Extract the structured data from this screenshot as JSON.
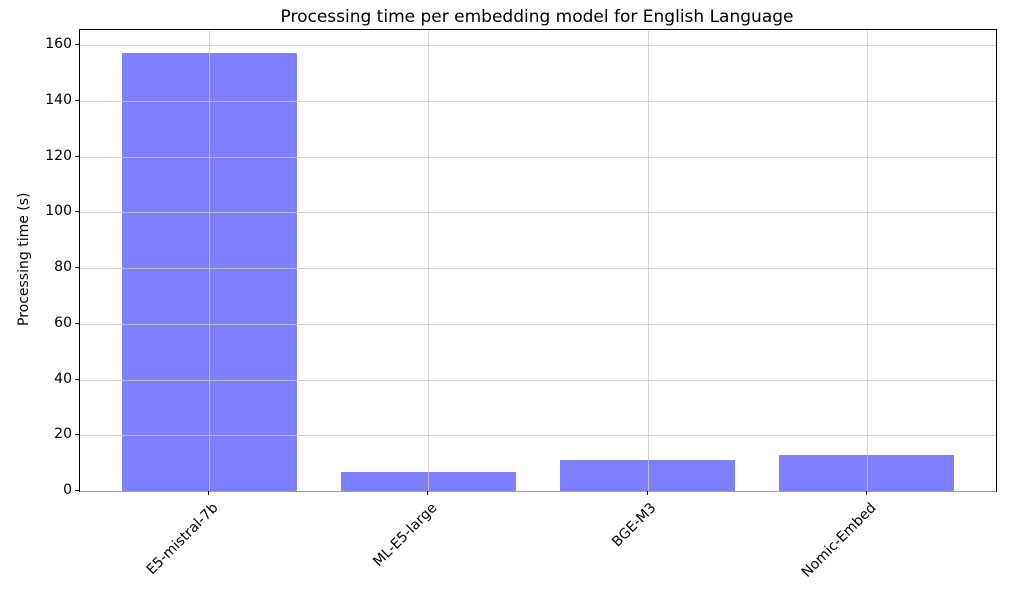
{
  "chart_data": {
    "type": "bar",
    "title": "Processing time per embedding model for English Language",
    "xlabel": "",
    "ylabel": "Processing time (s)",
    "categories": [
      "E5-mistral-7b",
      "ML-E5-large",
      "BGE-M3",
      "Nomic-Embed"
    ],
    "values": [
      157,
      7,
      11.2,
      12.8
    ],
    "yticks": [
      0,
      20,
      40,
      60,
      80,
      100,
      120,
      140,
      160
    ],
    "ylim": [
      0,
      165.4
    ],
    "xlim": [
      -0.59,
      3.59
    ],
    "bar_width": 0.8,
    "xtick_rotation": 45,
    "grid": true,
    "legend": "none",
    "bar_color": "#7f7fff",
    "grid_color": "rgba(200,200,200,0.8)",
    "spine_color": "#000000",
    "text_color": "#000000"
  }
}
